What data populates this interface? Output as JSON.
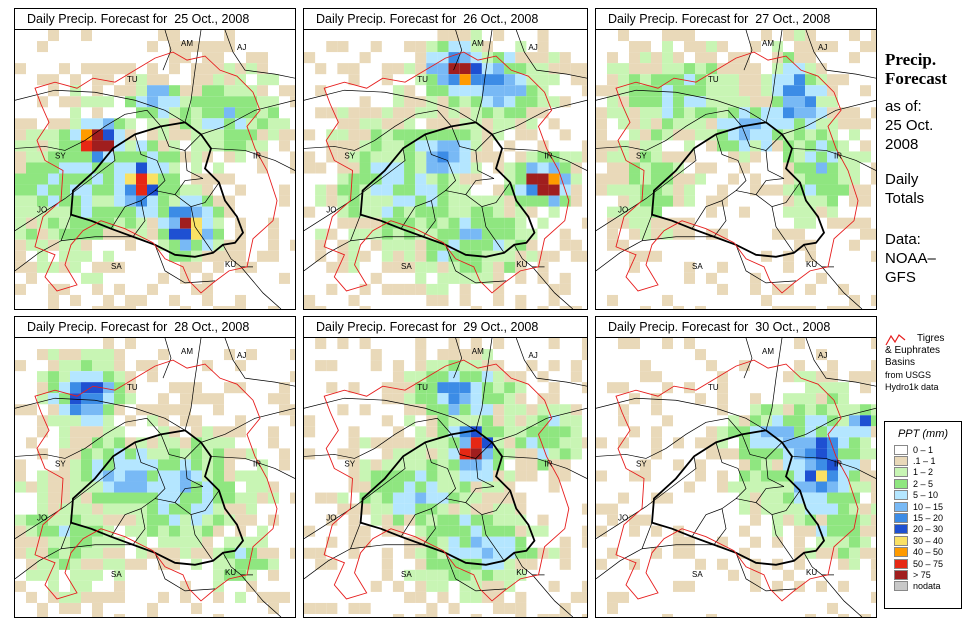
{
  "panels": [
    {
      "title": "Daily Precip. Forecast for  25 Oct., 2008"
    },
    {
      "title": "Daily Precip. Forecast for  26 Oct., 2008"
    },
    {
      "title": "Daily Precip. Forecast for  27 Oct., 2008"
    },
    {
      "title": "Daily Precip. Forecast for  28 Oct., 2008"
    },
    {
      "title": "Daily Precip. Forecast for  29 Oct., 2008"
    },
    {
      "title": "Daily Precip. Forecast for  30 Oct., 2008"
    }
  ],
  "country_labels": [
    "TU",
    "SY",
    "JO",
    "SA",
    "KU",
    "IR",
    "AM",
    "AJ"
  ],
  "sidebar": {
    "heading_line1": "Precip.",
    "heading_line2": "Forecast",
    "asof_line1": "as of:",
    "asof_line2": "25 Oct.",
    "asof_line3": "2008",
    "totals_line1": "Daily",
    "totals_line2": "Totals",
    "data_line1": "Data:",
    "data_line2": "NOAA–",
    "data_line3": "GFS"
  },
  "basin_note": {
    "line1": "Tigres",
    "line2": "& Euphrates",
    "line3": "Basins",
    "line4": "from USGS",
    "line5": "Hydro1k data"
  },
  "legend": {
    "title": "PPT (mm)",
    "items": [
      {
        "label": "0 – 1",
        "color": "#ffffff"
      },
      {
        "label": ".1 – 1",
        "color": "#e9d9b9"
      },
      {
        "label": "1 – 2",
        "color": "#c8f5b4"
      },
      {
        "label": "2 – 5",
        "color": "#8fe680"
      },
      {
        "label": "5 – 10",
        "color": "#b4e6ff"
      },
      {
        "label": "10 – 15",
        "color": "#78b9f5"
      },
      {
        "label": "15 – 20",
        "color": "#3c8ce6"
      },
      {
        "label": "20 – 30",
        "color": "#1e50d2"
      },
      {
        "label": "30 – 40",
        "color": "#fae164"
      },
      {
        "label": "40 – 50",
        "color": "#ff9b00"
      },
      {
        "label": "50 – 75",
        "color": "#e62814"
      },
      {
        "label": "> 75",
        "color": "#a01e1e"
      },
      {
        "label": "nodata",
        "color": "#c8c8c8"
      }
    ]
  },
  "colors": {
    "basin_outline": "#e61e1e",
    "border": "#000000"
  }
}
